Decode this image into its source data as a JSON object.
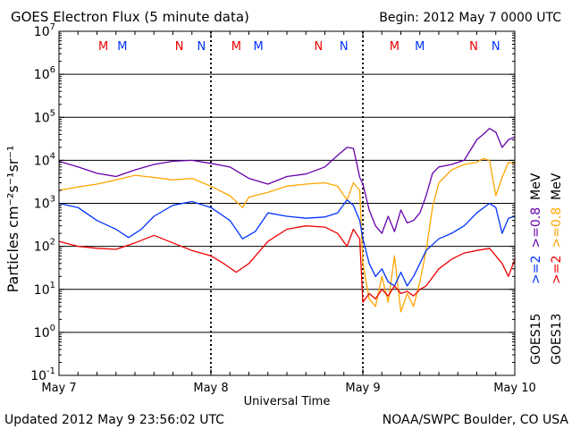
{
  "header": {
    "title": "GOES Electron Flux (5 minute data)",
    "begin": "Begin: 2012 May 7 0000 UTC"
  },
  "footer": {
    "updated": "Updated 2012 May  9 23:56:02 UTC",
    "credit": "NOAA/SWPC Boulder, CO USA"
  },
  "colors": {
    "goes15_gt2": "#0033ff",
    "goes15_gt08": "#6600aa",
    "goes13_gt2": "#ee0000",
    "goes13_gt08": "#ffa500",
    "m_marker": "#ee0000",
    "n_marker": "#0033ff"
  },
  "chart_data": {
    "type": "line",
    "title": "GOES Electron Flux (5 minute data)",
    "xlabel": "Universal Time",
    "ylabel": "Particles cm⁻²s⁻¹sr⁻¹",
    "y_scale": "log",
    "ylim": [
      0.1,
      10000000
    ],
    "y_ticks": [
      {
        "value": 0.1,
        "base": "10",
        "exp": "-1"
      },
      {
        "value": 1,
        "base": "10",
        "exp": "0"
      },
      {
        "value": 10,
        "base": "10",
        "exp": "1"
      },
      {
        "value": 100,
        "base": "10",
        "exp": "2"
      },
      {
        "value": 1000,
        "base": "10",
        "exp": "3"
      },
      {
        "value": 10000,
        "base": "10",
        "exp": "4"
      },
      {
        "value": 100000,
        "base": "10",
        "exp": "5"
      },
      {
        "value": 1000000,
        "base": "10",
        "exp": "6"
      },
      {
        "value": 10000000,
        "base": "10",
        "exp": "7"
      }
    ],
    "xlim": [
      "2012-05-07 00:00",
      "2012-05-10 00:00"
    ],
    "x_tick_labels": [
      "May 7",
      "May 8",
      "May 9",
      "May 10"
    ],
    "threshold_line": 1000,
    "grid": true,
    "markers": [
      {
        "label": "M",
        "time": "2012-05-07 07:00",
        "color": "#ee0000"
      },
      {
        "label": "M",
        "time": "2012-05-07 10:00",
        "color": "#0033ff"
      },
      {
        "label": "N",
        "time": "2012-05-07 19:00",
        "color": "#ee0000"
      },
      {
        "label": "N",
        "time": "2012-05-07 22:30",
        "color": "#0033ff"
      },
      {
        "label": "M",
        "time": "2012-05-08 04:00",
        "color": "#ee0000"
      },
      {
        "label": "M",
        "time": "2012-05-08 07:30",
        "color": "#0033ff"
      },
      {
        "label": "N",
        "time": "2012-05-08 17:00",
        "color": "#ee0000"
      },
      {
        "label": "N",
        "time": "2012-05-08 21:00",
        "color": "#0033ff"
      },
      {
        "label": "M",
        "time": "2012-05-09 05:00",
        "color": "#ee0000"
      },
      {
        "label": "M",
        "time": "2012-05-09 09:00",
        "color": "#0033ff"
      },
      {
        "label": "N",
        "time": "2012-05-09 17:30",
        "color": "#ee0000"
      },
      {
        "label": "N",
        "time": "2012-05-09 21:00",
        "color": "#0033ff"
      }
    ],
    "legend": {
      "placement": "right",
      "groups": [
        {
          "name": "GOES15",
          "items": [
            {
              "text": ">=2",
              "color": "#0033ff"
            },
            {
              "text": ">=0.8",
              "color": "#6600aa"
            },
            {
              "text": "MeV",
              "color": "#000000"
            }
          ]
        },
        {
          "name": "GOES13",
          "items": [
            {
              "text": ">=2",
              "color": "#ee0000"
            },
            {
              "text": ">=0.8",
              "color": "#ffa500"
            },
            {
              "text": "MeV",
              "color": "#000000"
            }
          ]
        }
      ]
    },
    "series": [
      {
        "name": "GOES15 >=0.8 MeV",
        "color": "#6600aa",
        "points": [
          [
            "2012-05-07 00:00",
            9500
          ],
          [
            "2012-05-07 03:00",
            7000
          ],
          [
            "2012-05-07 06:00",
            5000
          ],
          [
            "2012-05-07 09:00",
            4200
          ],
          [
            "2012-05-07 12:00",
            6000
          ],
          [
            "2012-05-07 15:00",
            8000
          ],
          [
            "2012-05-07 18:00",
            9500
          ],
          [
            "2012-05-07 21:00",
            10000
          ],
          [
            "2012-05-08 00:00",
            8500
          ],
          [
            "2012-05-08 03:00",
            7000
          ],
          [
            "2012-05-08 06:00",
            3800
          ],
          [
            "2012-05-08 09:00",
            2800
          ],
          [
            "2012-05-08 12:00",
            4200
          ],
          [
            "2012-05-08 15:00",
            4800
          ],
          [
            "2012-05-08 18:00",
            7000
          ],
          [
            "2012-05-08 20:00",
            13000
          ],
          [
            "2012-05-08 21:30",
            20000
          ],
          [
            "2012-05-08 22:30",
            19000
          ],
          [
            "2012-05-08 23:00",
            9000
          ],
          [
            "2012-05-08 23:30",
            4000
          ],
          [
            "2012-05-09 00:00",
            2800
          ],
          [
            "2012-05-09 01:00",
            700
          ],
          [
            "2012-05-09 02:00",
            300
          ],
          [
            "2012-05-09 03:00",
            200
          ],
          [
            "2012-05-09 04:00",
            500
          ],
          [
            "2012-05-09 05:00",
            220
          ],
          [
            "2012-05-09 06:00",
            700
          ],
          [
            "2012-05-09 07:00",
            350
          ],
          [
            "2012-05-09 08:00",
            400
          ],
          [
            "2012-05-09 09:00",
            600
          ],
          [
            "2012-05-09 10:00",
            1500
          ],
          [
            "2012-05-09 11:00",
            5000
          ],
          [
            "2012-05-09 12:00",
            7000
          ],
          [
            "2012-05-09 14:00",
            8000
          ],
          [
            "2012-05-09 16:00",
            10000
          ],
          [
            "2012-05-09 18:00",
            30000
          ],
          [
            "2012-05-09 19:00",
            40000
          ],
          [
            "2012-05-09 20:00",
            55000
          ],
          [
            "2012-05-09 21:00",
            45000
          ],
          [
            "2012-05-09 22:00",
            20000
          ],
          [
            "2012-05-09 23:00",
            30000
          ],
          [
            "2012-05-10 00:00",
            35000
          ]
        ]
      },
      {
        "name": "GOES13 >=0.8 MeV",
        "color": "#ffa500",
        "points": [
          [
            "2012-05-07 00:00",
            2000
          ],
          [
            "2012-05-07 03:00",
            2400
          ],
          [
            "2012-05-07 06:00",
            2800
          ],
          [
            "2012-05-07 09:00",
            3500
          ],
          [
            "2012-05-07 12:00",
            4500
          ],
          [
            "2012-05-07 15:00",
            4000
          ],
          [
            "2012-05-07 18:00",
            3500
          ],
          [
            "2012-05-07 21:00",
            3800
          ],
          [
            "2012-05-08 00:00",
            2500
          ],
          [
            "2012-05-08 03:00",
            1500
          ],
          [
            "2012-05-08 05:00",
            800
          ],
          [
            "2012-05-08 06:00",
            1400
          ],
          [
            "2012-05-08 09:00",
            1800
          ],
          [
            "2012-05-08 12:00",
            2500
          ],
          [
            "2012-05-08 15:00",
            2800
          ],
          [
            "2012-05-08 18:00",
            3000
          ],
          [
            "2012-05-08 20:00",
            2500
          ],
          [
            "2012-05-08 21:30",
            1200
          ],
          [
            "2012-05-08 22:30",
            3000
          ],
          [
            "2012-05-08 23:30",
            2000
          ],
          [
            "2012-05-09 00:00",
            40
          ],
          [
            "2012-05-09 01:00",
            6
          ],
          [
            "2012-05-09 02:00",
            4
          ],
          [
            "2012-05-09 03:00",
            20
          ],
          [
            "2012-05-09 04:00",
            5
          ],
          [
            "2012-05-09 05:00",
            60
          ],
          [
            "2012-05-09 06:00",
            3
          ],
          [
            "2012-05-09 07:00",
            8
          ],
          [
            "2012-05-09 08:00",
            4
          ],
          [
            "2012-05-09 09:00",
            15
          ],
          [
            "2012-05-09 10:00",
            80
          ],
          [
            "2012-05-09 11:00",
            800
          ],
          [
            "2012-05-09 12:00",
            3000
          ],
          [
            "2012-05-09 14:00",
            6000
          ],
          [
            "2012-05-09 16:00",
            8000
          ],
          [
            "2012-05-09 18:00",
            9000
          ],
          [
            "2012-05-09 19:00",
            11000
          ],
          [
            "2012-05-09 20:00",
            10000
          ],
          [
            "2012-05-09 21:00",
            1500
          ],
          [
            "2012-05-09 22:00",
            4000
          ],
          [
            "2012-05-09 23:00",
            9000
          ],
          [
            "2012-05-10 00:00",
            8500
          ]
        ]
      },
      {
        "name": "GOES15 >=2 MeV",
        "color": "#0033ff",
        "points": [
          [
            "2012-05-07 00:00",
            1000
          ],
          [
            "2012-05-07 03:00",
            800
          ],
          [
            "2012-05-07 06:00",
            400
          ],
          [
            "2012-05-07 09:00",
            250
          ],
          [
            "2012-05-07 11:00",
            160
          ],
          [
            "2012-05-07 13:00",
            250
          ],
          [
            "2012-05-07 15:00",
            500
          ],
          [
            "2012-05-07 18:00",
            900
          ],
          [
            "2012-05-07 21:00",
            1100
          ],
          [
            "2012-05-08 00:00",
            800
          ],
          [
            "2012-05-08 03:00",
            400
          ],
          [
            "2012-05-08 05:00",
            150
          ],
          [
            "2012-05-08 07:00",
            220
          ],
          [
            "2012-05-08 09:00",
            600
          ],
          [
            "2012-05-08 12:00",
            500
          ],
          [
            "2012-05-08 15:00",
            450
          ],
          [
            "2012-05-08 18:00",
            480
          ],
          [
            "2012-05-08 20:00",
            600
          ],
          [
            "2012-05-08 21:30",
            1200
          ],
          [
            "2012-05-08 22:30",
            900
          ],
          [
            "2012-05-08 23:30",
            400
          ],
          [
            "2012-05-09 00:00",
            150
          ],
          [
            "2012-05-09 01:00",
            40
          ],
          [
            "2012-05-09 02:00",
            20
          ],
          [
            "2012-05-09 03:00",
            30
          ],
          [
            "2012-05-09 04:00",
            15
          ],
          [
            "2012-05-09 05:00",
            12
          ],
          [
            "2012-05-09 06:00",
            25
          ],
          [
            "2012-05-09 07:00",
            12
          ],
          [
            "2012-05-09 08:00",
            20
          ],
          [
            "2012-05-09 09:00",
            40
          ],
          [
            "2012-05-09 10:00",
            80
          ],
          [
            "2012-05-09 12:00",
            150
          ],
          [
            "2012-05-09 14:00",
            200
          ],
          [
            "2012-05-09 16:00",
            300
          ],
          [
            "2012-05-09 18:00",
            600
          ],
          [
            "2012-05-09 20:00",
            1000
          ],
          [
            "2012-05-09 21:00",
            800
          ],
          [
            "2012-05-09 22:00",
            200
          ],
          [
            "2012-05-09 23:00",
            450
          ],
          [
            "2012-05-10 00:00",
            500
          ]
        ]
      },
      {
        "name": "GOES13 >=2 MeV",
        "color": "#ee0000",
        "points": [
          [
            "2012-05-07 00:00",
            130
          ],
          [
            "2012-05-07 03:00",
            100
          ],
          [
            "2012-05-07 06:00",
            90
          ],
          [
            "2012-05-07 09:00",
            85
          ],
          [
            "2012-05-07 12:00",
            120
          ],
          [
            "2012-05-07 15:00",
            180
          ],
          [
            "2012-05-07 18:00",
            120
          ],
          [
            "2012-05-07 21:00",
            80
          ],
          [
            "2012-05-08 00:00",
            60
          ],
          [
            "2012-05-08 02:00",
            40
          ],
          [
            "2012-05-08 04:00",
            25
          ],
          [
            "2012-05-08 06:00",
            40
          ],
          [
            "2012-05-08 09:00",
            130
          ],
          [
            "2012-05-08 12:00",
            250
          ],
          [
            "2012-05-08 15:00",
            300
          ],
          [
            "2012-05-08 18:00",
            280
          ],
          [
            "2012-05-08 20:00",
            200
          ],
          [
            "2012-05-08 21:30",
            100
          ],
          [
            "2012-05-08 22:30",
            250
          ],
          [
            "2012-05-08 23:30",
            150
          ],
          [
            "2012-05-09 00:00",
            5
          ],
          [
            "2012-05-09 01:00",
            8
          ],
          [
            "2012-05-09 02:00",
            6
          ],
          [
            "2012-05-09 03:00",
            10
          ],
          [
            "2012-05-09 04:00",
            7
          ],
          [
            "2012-05-09 05:00",
            12
          ],
          [
            "2012-05-09 06:00",
            8
          ],
          [
            "2012-05-09 07:00",
            9
          ],
          [
            "2012-05-09 08:00",
            7
          ],
          [
            "2012-05-09 09:00",
            10
          ],
          [
            "2012-05-09 10:00",
            12
          ],
          [
            "2012-05-09 12:00",
            30
          ],
          [
            "2012-05-09 14:00",
            50
          ],
          [
            "2012-05-09 16:00",
            70
          ],
          [
            "2012-05-09 18:00",
            80
          ],
          [
            "2012-05-09 20:00",
            90
          ],
          [
            "2012-05-09 21:00",
            60
          ],
          [
            "2012-05-09 22:00",
            40
          ],
          [
            "2012-05-09 23:00",
            20
          ],
          [
            "2012-05-10 00:00",
            50
          ]
        ]
      }
    ]
  }
}
